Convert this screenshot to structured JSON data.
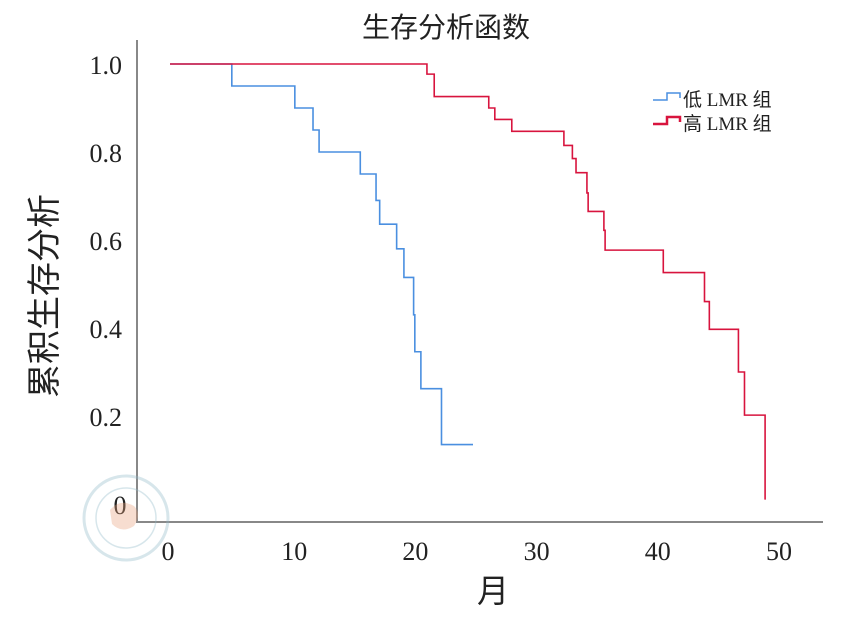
{
  "chart_data": {
    "type": "line",
    "subtype": "kaplan-meier-step",
    "title": "生存分析函数",
    "xlabel": "月",
    "ylabel": "累积生存分析",
    "xlim": [
      0,
      50
    ],
    "ylim": [
      0,
      1.0
    ],
    "xticks": [
      "0",
      "10",
      "20",
      "30",
      "40",
      "50"
    ],
    "yticks": [
      "0",
      "0.2",
      "0.4",
      "0.6",
      "0.8",
      "1.0"
    ],
    "grid": false,
    "legend_position": "top-right",
    "series": [
      {
        "name": "低 LMR 组",
        "color": "#4a8fe0",
        "points": [
          [
            0,
            1.0
          ],
          [
            5.1,
            0.95
          ],
          [
            10.3,
            0.9
          ],
          [
            11.8,
            0.85
          ],
          [
            12.3,
            0.8
          ],
          [
            15.7,
            0.75
          ],
          [
            17.0,
            0.69
          ],
          [
            17.3,
            0.636
          ],
          [
            18.7,
            0.58
          ],
          [
            19.3,
            0.515
          ],
          [
            20.1,
            0.43
          ],
          [
            20.2,
            0.346
          ],
          [
            20.7,
            0.262
          ],
          [
            22.4,
            0.135
          ]
        ],
        "end_x": 25.0
      },
      {
        "name": "高 LMR 组",
        "color": "#d8143e",
        "points": [
          [
            0,
            1.0
          ],
          [
            21.2,
            0.977
          ],
          [
            21.8,
            0.926
          ],
          [
            26.3,
            0.9
          ],
          [
            26.8,
            0.874
          ],
          [
            28.2,
            0.847
          ],
          [
            32.5,
            0.815
          ],
          [
            33.2,
            0.785
          ],
          [
            33.5,
            0.753
          ],
          [
            34.4,
            0.707
          ],
          [
            34.5,
            0.665
          ],
          [
            35.8,
            0.622
          ],
          [
            35.9,
            0.577
          ],
          [
            40.7,
            0.526
          ],
          [
            44.1,
            0.46
          ],
          [
            44.5,
            0.397
          ],
          [
            46.9,
            0.3
          ],
          [
            47.4,
            0.202
          ],
          [
            49.1,
            0.01
          ]
        ],
        "end_x": 49.1
      }
    ]
  }
}
